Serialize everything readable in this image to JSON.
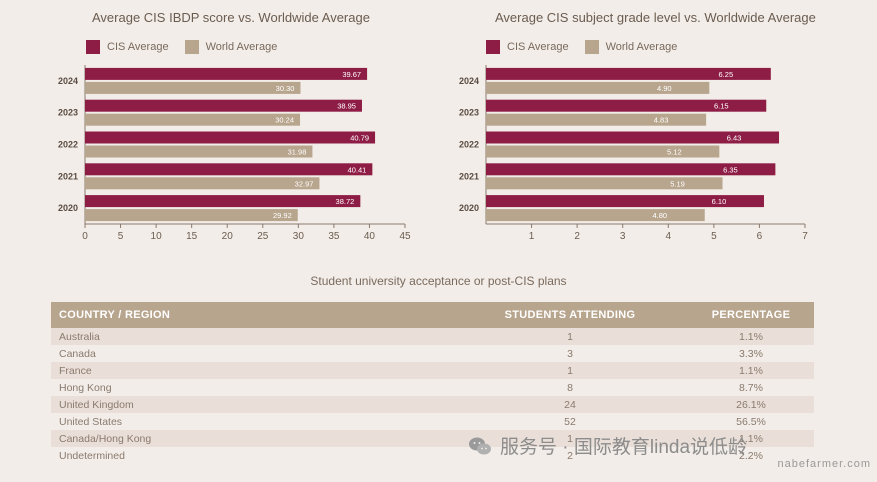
{
  "colors": {
    "cis": "#8e1d45",
    "world": "#b8a58e"
  },
  "legend": {
    "cis": "CIS Average",
    "world": "World Average"
  },
  "chart_data": [
    {
      "type": "bar",
      "orientation": "horizontal",
      "title": "Average CIS IBDP score vs. Worldwide Average",
      "categories": [
        "2024",
        "2023",
        "2022",
        "2021",
        "2020"
      ],
      "series": [
        {
          "name": "CIS Average",
          "values": [
            39.67,
            38.95,
            40.79,
            40.41,
            38.72
          ],
          "labels": [
            "39.67",
            "38.95",
            "40.79",
            "40.41",
            "38.72"
          ]
        },
        {
          "name": "World Average",
          "values": [
            30.3,
            30.24,
            31.98,
            32.97,
            29.92
          ],
          "labels": [
            "30.30",
            "30.24",
            "31.98",
            "32.97",
            "29.92"
          ]
        }
      ],
      "xlim": [
        0,
        45
      ],
      "ticks": [
        "0",
        "5",
        "10",
        "15",
        "20",
        "25",
        "30",
        "35",
        "40",
        "45"
      ]
    },
    {
      "type": "bar",
      "orientation": "horizontal",
      "title": "Average CIS subject grade level vs. Worldwide Average",
      "categories": [
        "2024",
        "2023",
        "2022",
        "2021",
        "2020"
      ],
      "series": [
        {
          "name": "CIS Average",
          "values": [
            6.25,
            6.15,
            6.43,
            6.35,
            6.1
          ],
          "labels": [
            "6.25",
            "6.15",
            "6.43",
            "6.35",
            "6.10"
          ]
        },
        {
          "name": "World Average",
          "values": [
            4.9,
            4.83,
            5.12,
            5.19,
            4.8
          ],
          "labels": [
            "4.90",
            "4.83",
            "5.12",
            "5.19",
            "4.80"
          ]
        }
      ],
      "xlim": [
        0,
        7
      ],
      "ticks": [
        "1",
        "2",
        "3",
        "4",
        "5",
        "6",
        "7"
      ]
    }
  ],
  "table": {
    "title": "Student university acceptance or post-CIS plans",
    "headers": [
      "COUNTRY / REGION",
      "STUDENTS ATTENDING",
      "PERCENTAGE"
    ],
    "rows": [
      [
        "Australia",
        "1",
        "1.1%"
      ],
      [
        "Canada",
        "3",
        "3.3%"
      ],
      [
        "France",
        "1",
        "1.1%"
      ],
      [
        "Hong Kong",
        "8",
        "8.7%"
      ],
      [
        "United Kingdom",
        "24",
        "26.1%"
      ],
      [
        "United States",
        "52",
        "56.5%"
      ],
      [
        "Canada/Hong Kong",
        "1",
        "1.1%"
      ],
      [
        "Undetermined",
        "2",
        "2.2%"
      ]
    ]
  },
  "watermark": {
    "text": "服务号 · 国际教育linda说低龄",
    "url": "nabefarmer.com"
  }
}
